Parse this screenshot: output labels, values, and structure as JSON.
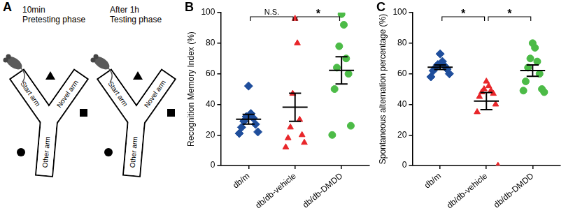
{
  "diagram": {
    "panel_label": "A",
    "phases": [
      {
        "time": "10min",
        "name": "Pretesting phase",
        "arms": {
          "start": "Start arm",
          "novel": "Novel arm",
          "other": "Other arm"
        }
      },
      {
        "time": "After 1h",
        "name": "Testing phase",
        "arms": {
          "start": "Start arm",
          "novel": "Novel arm",
          "other": "Other arm"
        }
      }
    ]
  },
  "chart_data": [
    {
      "panel_label": "B",
      "type": "scatter",
      "y_label": "Recognition Memory Index (%)",
      "ylim": [
        0,
        100
      ],
      "yticks": [
        0,
        20,
        40,
        60,
        80,
        100
      ],
      "series": [
        {
          "name": "db/m",
          "color": "#1f4e9c",
          "marker": "diamond",
          "values": [
            52,
            34,
            32,
            31,
            29,
            27,
            25,
            22,
            21
          ],
          "mean": 30.3,
          "sem": 3.2
        },
        {
          "name": "db/db-vehicle",
          "color": "#e8262a",
          "marker": "triangle",
          "values": [
            96,
            80,
            47,
            30,
            25,
            20,
            18,
            15,
            12
          ],
          "mean": 38.1,
          "sem": 9.2
        },
        {
          "name": "db/db-DMDD",
          "color": "#4cbb47",
          "marker": "circle",
          "values": [
            99,
            92,
            78,
            70,
            64,
            60,
            50,
            26,
            20
          ],
          "mean": 62.2,
          "sem": 8.9
        }
      ],
      "annotations": [
        {
          "between": [
            "db/m",
            "db/db-vehicle"
          ],
          "label": "N.S."
        },
        {
          "between": [
            "db/db-vehicle",
            "db/db-DMDD"
          ],
          "label": "*"
        }
      ]
    },
    {
      "panel_label": "C",
      "type": "scatter",
      "y_label": "Spontaneous alternation percentage (%)",
      "ylim": [
        0,
        100
      ],
      "yticks": [
        0,
        20,
        40,
        60,
        80,
        100
      ],
      "series": [
        {
          "name": "db/m",
          "color": "#1f4e9c",
          "marker": "diamond",
          "values": [
            73,
            68,
            66,
            65,
            64,
            63,
            62,
            60,
            58
          ],
          "mean": 64.3,
          "sem": 1.5
        },
        {
          "name": "db/db-vehicle",
          "color": "#e8262a",
          "marker": "triangle",
          "values": [
            55,
            52,
            50,
            49,
            48,
            47,
            45,
            40,
            35,
            0
          ],
          "mean": 42.1,
          "sem": 5.6
        },
        {
          "name": "db/db-DMDD",
          "color": "#4cbb47",
          "marker": "circle",
          "values": [
            80,
            77,
            70,
            68,
            64,
            60,
            55,
            50,
            49,
            48
          ],
          "mean": 62.1,
          "sem": 3.7
        }
      ],
      "annotations": [
        {
          "between": [
            "db/m",
            "db/db-vehicle"
          ],
          "label": "*"
        },
        {
          "between": [
            "db/db-vehicle",
            "db/db-DMDD"
          ],
          "label": "*"
        }
      ]
    }
  ]
}
